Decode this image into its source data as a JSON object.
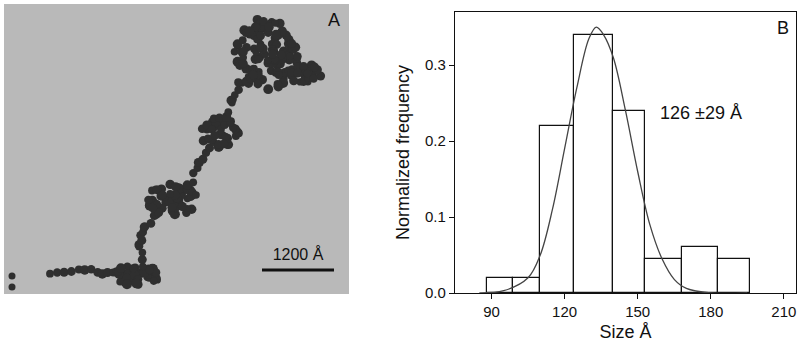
{
  "image_panel": {
    "label": "A",
    "scale_bar_label": "1200 Å"
  },
  "chart_data": {
    "type": "histogram",
    "panel_label": "B",
    "x_label": "Size Å",
    "y_label": "Normalized frequency",
    "bins": [
      88,
      99,
      110,
      124,
      140,
      153,
      168,
      183,
      196
    ],
    "values": [
      0.02,
      0.02,
      0.22,
      0.34,
      0.24,
      0.045,
      0.06,
      0.045
    ],
    "color": "#ffffff",
    "fit": {
      "type": "line",
      "color": "#444444",
      "x": [
        85,
        95,
        105,
        110,
        115,
        120,
        125,
        130,
        133,
        136,
        140,
        145,
        150,
        155,
        160,
        165,
        170,
        180,
        195
      ],
      "values": [
        0.0,
        0.003,
        0.02,
        0.05,
        0.11,
        0.19,
        0.27,
        0.335,
        0.35,
        0.34,
        0.31,
        0.24,
        0.16,
        0.09,
        0.045,
        0.018,
        0.006,
        0.0,
        0.0
      ]
    },
    "annotations": [
      "126 ±29 Å"
    ],
    "xlim": [
      75,
      215
    ],
    "xticks": [
      90,
      120,
      150,
      180,
      210
    ],
    "ylim": [
      0,
      0.37
    ],
    "yticks": [
      {
        "value": 0,
        "label": "0.0"
      },
      {
        "value": 0.1,
        "label": "0.1"
      },
      {
        "value": 0.2,
        "label": "0.2"
      },
      {
        "value": 0.3,
        "label": "0.3"
      }
    ],
    "grid": false
  }
}
